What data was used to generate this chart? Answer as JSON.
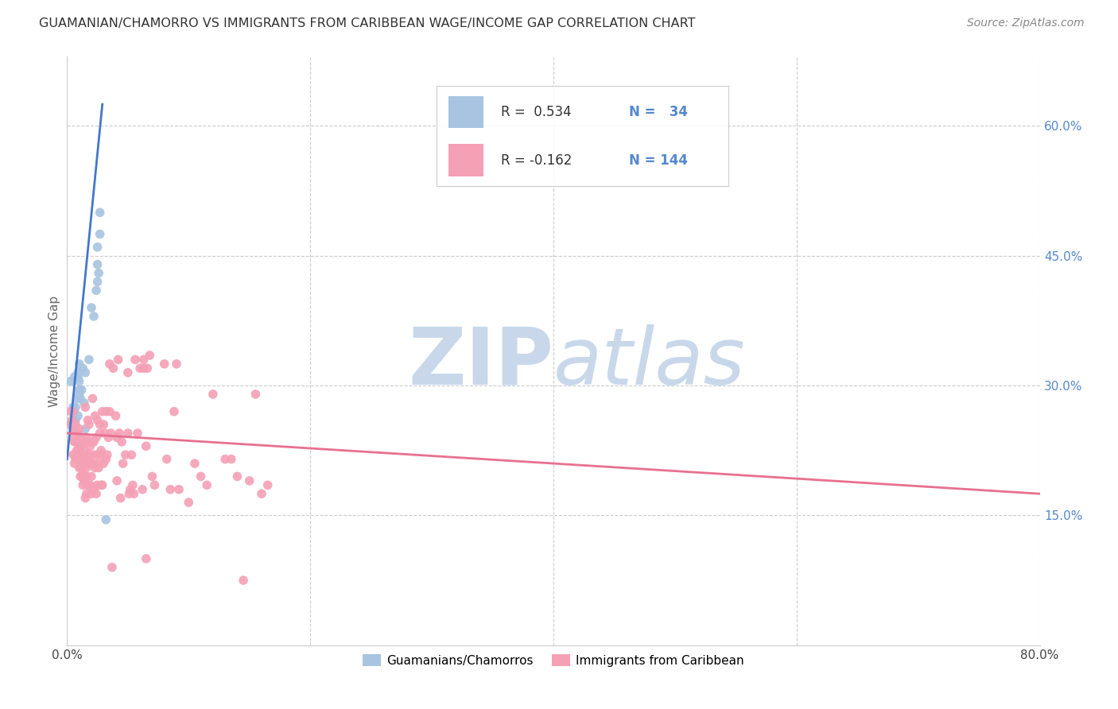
{
  "title": "GUAMANIAN/CHAMORRO VS IMMIGRANTS FROM CARIBBEAN WAGE/INCOME GAP CORRELATION CHART",
  "source": "Source: ZipAtlas.com",
  "ylabel": "Wage/Income Gap",
  "right_yticks": [
    "15.0%",
    "30.0%",
    "45.0%",
    "60.0%"
  ],
  "right_ytick_vals": [
    0.15,
    0.3,
    0.45,
    0.6
  ],
  "xlim": [
    0.0,
    0.8
  ],
  "ylim": [
    0.0,
    0.68
  ],
  "blue_color": "#a8c4e0",
  "pink_color": "#f4a0b5",
  "blue_line_color": "#4477cc",
  "pink_line_color": "#e87090",
  "watermark_color": "#c8d8ea",
  "blue_scatter": [
    [
      0.003,
      0.255
    ],
    [
      0.003,
      0.305
    ],
    [
      0.005,
      0.275
    ],
    [
      0.006,
      0.27
    ],
    [
      0.006,
      0.31
    ],
    [
      0.007,
      0.26
    ],
    [
      0.007,
      0.275
    ],
    [
      0.008,
      0.22
    ],
    [
      0.008,
      0.285
    ],
    [
      0.009,
      0.31
    ],
    [
      0.009,
      0.315
    ],
    [
      0.009,
      0.265
    ],
    [
      0.01,
      0.295
    ],
    [
      0.01,
      0.305
    ],
    [
      0.01,
      0.325
    ],
    [
      0.01,
      0.29
    ],
    [
      0.011,
      0.23
    ],
    [
      0.011,
      0.285
    ],
    [
      0.012,
      0.295
    ],
    [
      0.013,
      0.32
    ],
    [
      0.014,
      0.28
    ],
    [
      0.015,
      0.315
    ],
    [
      0.015,
      0.25
    ],
    [
      0.018,
      0.33
    ],
    [
      0.02,
      0.39
    ],
    [
      0.022,
      0.38
    ],
    [
      0.024,
      0.41
    ],
    [
      0.025,
      0.42
    ],
    [
      0.025,
      0.44
    ],
    [
      0.025,
      0.46
    ],
    [
      0.026,
      0.43
    ],
    [
      0.027,
      0.475
    ],
    [
      0.027,
      0.5
    ],
    [
      0.032,
      0.145
    ]
  ],
  "pink_scatter": [
    [
      0.003,
      0.27
    ],
    [
      0.003,
      0.255
    ],
    [
      0.004,
      0.26
    ],
    [
      0.005,
      0.22
    ],
    [
      0.005,
      0.24
    ],
    [
      0.005,
      0.27
    ],
    [
      0.005,
      0.25
    ],
    [
      0.006,
      0.21
    ],
    [
      0.006,
      0.25
    ],
    [
      0.006,
      0.235
    ],
    [
      0.007,
      0.235
    ],
    [
      0.007,
      0.255
    ],
    [
      0.007,
      0.215
    ],
    [
      0.007,
      0.22
    ],
    [
      0.008,
      0.22
    ],
    [
      0.008,
      0.215
    ],
    [
      0.008,
      0.225
    ],
    [
      0.008,
      0.245
    ],
    [
      0.009,
      0.215
    ],
    [
      0.009,
      0.245
    ],
    [
      0.009,
      0.225
    ],
    [
      0.009,
      0.235
    ],
    [
      0.01,
      0.205
    ],
    [
      0.01,
      0.215
    ],
    [
      0.01,
      0.24
    ],
    [
      0.01,
      0.25
    ],
    [
      0.011,
      0.215
    ],
    [
      0.011,
      0.22
    ],
    [
      0.011,
      0.195
    ],
    [
      0.011,
      0.23
    ],
    [
      0.012,
      0.195
    ],
    [
      0.012,
      0.21
    ],
    [
      0.012,
      0.22
    ],
    [
      0.012,
      0.205
    ],
    [
      0.013,
      0.22
    ],
    [
      0.013,
      0.205
    ],
    [
      0.013,
      0.215
    ],
    [
      0.013,
      0.185
    ],
    [
      0.014,
      0.19
    ],
    [
      0.014,
      0.225
    ],
    [
      0.014,
      0.215
    ],
    [
      0.015,
      0.275
    ],
    [
      0.015,
      0.22
    ],
    [
      0.015,
      0.235
    ],
    [
      0.015,
      0.195
    ],
    [
      0.015,
      0.17
    ],
    [
      0.016,
      0.195
    ],
    [
      0.016,
      0.175
    ],
    [
      0.016,
      0.205
    ],
    [
      0.016,
      0.24
    ],
    [
      0.017,
      0.235
    ],
    [
      0.017,
      0.26
    ],
    [
      0.017,
      0.215
    ],
    [
      0.017,
      0.185
    ],
    [
      0.018,
      0.21
    ],
    [
      0.018,
      0.22
    ],
    [
      0.018,
      0.255
    ],
    [
      0.019,
      0.23
    ],
    [
      0.019,
      0.185
    ],
    [
      0.02,
      0.21
    ],
    [
      0.02,
      0.175
    ],
    [
      0.02,
      0.195
    ],
    [
      0.021,
      0.285
    ],
    [
      0.021,
      0.235
    ],
    [
      0.022,
      0.22
    ],
    [
      0.022,
      0.21
    ],
    [
      0.022,
      0.235
    ],
    [
      0.022,
      0.18
    ],
    [
      0.023,
      0.205
    ],
    [
      0.023,
      0.265
    ],
    [
      0.024,
      0.175
    ],
    [
      0.024,
      0.24
    ],
    [
      0.025,
      0.22
    ],
    [
      0.025,
      0.185
    ],
    [
      0.025,
      0.26
    ],
    [
      0.026,
      0.205
    ],
    [
      0.026,
      0.21
    ],
    [
      0.027,
      0.255
    ],
    [
      0.027,
      0.245
    ],
    [
      0.028,
      0.225
    ],
    [
      0.028,
      0.22
    ],
    [
      0.028,
      0.185
    ],
    [
      0.029,
      0.185
    ],
    [
      0.029,
      0.27
    ],
    [
      0.03,
      0.21
    ],
    [
      0.03,
      0.255
    ],
    [
      0.031,
      0.245
    ],
    [
      0.032,
      0.27
    ],
    [
      0.032,
      0.215
    ],
    [
      0.033,
      0.22
    ],
    [
      0.034,
      0.24
    ],
    [
      0.035,
      0.27
    ],
    [
      0.035,
      0.325
    ],
    [
      0.036,
      0.245
    ],
    [
      0.037,
      0.09
    ],
    [
      0.038,
      0.32
    ],
    [
      0.04,
      0.265
    ],
    [
      0.041,
      0.24
    ],
    [
      0.041,
      0.19
    ],
    [
      0.042,
      0.33
    ],
    [
      0.043,
      0.245
    ],
    [
      0.044,
      0.17
    ],
    [
      0.045,
      0.235
    ],
    [
      0.046,
      0.21
    ],
    [
      0.048,
      0.22
    ],
    [
      0.05,
      0.245
    ],
    [
      0.05,
      0.315
    ],
    [
      0.051,
      0.175
    ],
    [
      0.052,
      0.18
    ],
    [
      0.053,
      0.22
    ],
    [
      0.054,
      0.185
    ],
    [
      0.055,
      0.175
    ],
    [
      0.056,
      0.33
    ],
    [
      0.058,
      0.245
    ],
    [
      0.06,
      0.32
    ],
    [
      0.062,
      0.18
    ],
    [
      0.063,
      0.33
    ],
    [
      0.063,
      0.32
    ],
    [
      0.065,
      0.23
    ],
    [
      0.065,
      0.1
    ],
    [
      0.066,
      0.32
    ],
    [
      0.068,
      0.335
    ],
    [
      0.07,
      0.195
    ],
    [
      0.072,
      0.185
    ],
    [
      0.08,
      0.325
    ],
    [
      0.082,
      0.215
    ],
    [
      0.085,
      0.18
    ],
    [
      0.088,
      0.27
    ],
    [
      0.09,
      0.325
    ],
    [
      0.092,
      0.18
    ],
    [
      0.1,
      0.165
    ],
    [
      0.105,
      0.21
    ],
    [
      0.11,
      0.195
    ],
    [
      0.115,
      0.185
    ],
    [
      0.12,
      0.29
    ],
    [
      0.13,
      0.215
    ],
    [
      0.135,
      0.215
    ],
    [
      0.14,
      0.195
    ],
    [
      0.145,
      0.075
    ],
    [
      0.15,
      0.19
    ],
    [
      0.155,
      0.29
    ],
    [
      0.16,
      0.175
    ],
    [
      0.165,
      0.185
    ]
  ],
  "blue_line": {
    "x0": 0.0,
    "x1": 0.029,
    "y0": 0.215,
    "y1": 0.625
  },
  "pink_line": {
    "x0": 0.0,
    "x1": 0.8,
    "y0": 0.245,
    "y1": 0.175
  }
}
